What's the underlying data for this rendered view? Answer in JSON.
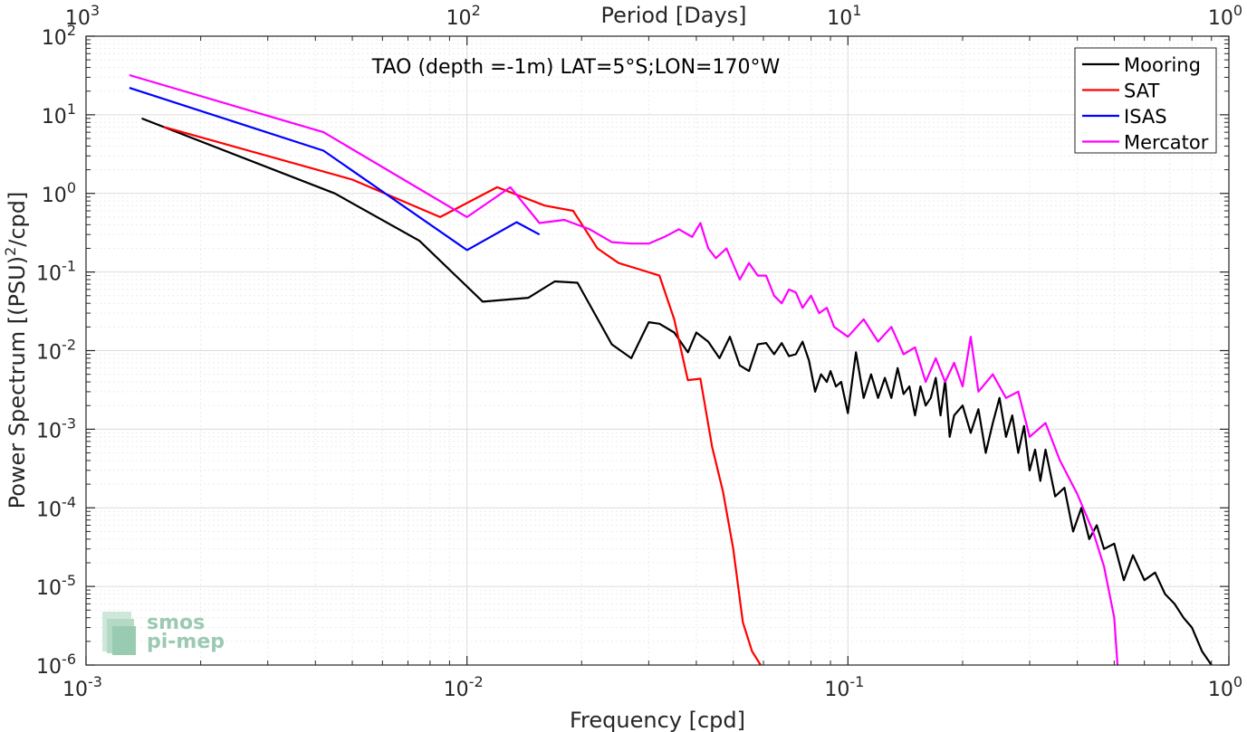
{
  "chart_data": {
    "type": "line",
    "title": "TAO (depth =-1m) LAT=5°S;LON=170°W",
    "xlabel": "Frequency [cpd]",
    "ylabel_main": "Power Spectrum [(PSU)",
    "ylabel_sup": "2",
    "ylabel_tail": "/cpd]",
    "top_xlabel": "Period [Days]",
    "x_scale": "log",
    "y_scale": "log",
    "xlim": [
      0.001,
      1
    ],
    "ylim": [
      1e-06,
      100
    ],
    "grid": true,
    "legend_position": "top-right",
    "x_ticks": [
      {
        "value": 0.001,
        "base": "10",
        "exp": "-3"
      },
      {
        "value": 0.01,
        "base": "10",
        "exp": "-2"
      },
      {
        "value": 0.1,
        "base": "10",
        "exp": "-1"
      },
      {
        "value": 1,
        "base": "10",
        "exp": "0"
      }
    ],
    "top_ticks": [
      {
        "value": 0.001,
        "base": "10",
        "exp": "3"
      },
      {
        "value": 0.01,
        "base": "10",
        "exp": "2"
      },
      {
        "value": 0.1,
        "base": "10",
        "exp": "1"
      },
      {
        "value": 1,
        "base": "10",
        "exp": "0"
      }
    ],
    "y_ticks": [
      {
        "value": 100,
        "base": "10",
        "exp": "2"
      },
      {
        "value": 10,
        "base": "10",
        "exp": "1"
      },
      {
        "value": 1,
        "base": "10",
        "exp": "0"
      },
      {
        "value": 0.1,
        "base": "10",
        "exp": "-1"
      },
      {
        "value": 0.01,
        "base": "10",
        "exp": "-2"
      },
      {
        "value": 0.001,
        "base": "10",
        "exp": "-3"
      },
      {
        "value": 0.0001,
        "base": "10",
        "exp": "-4"
      },
      {
        "value": 1e-05,
        "base": "10",
        "exp": "-5"
      },
      {
        "value": 1e-06,
        "base": "10",
        "exp": "-6"
      }
    ],
    "series": [
      {
        "name": "Mooring",
        "color": "#000000",
        "x": [
          0.0014,
          0.0045,
          0.0075,
          0.011,
          0.0145,
          0.017,
          0.0195,
          0.024,
          0.027,
          0.03,
          0.032,
          0.035,
          0.038,
          0.04,
          0.043,
          0.046,
          0.049,
          0.052,
          0.055,
          0.058,
          0.061,
          0.064,
          0.067,
          0.07,
          0.073,
          0.076,
          0.079,
          0.082,
          0.085,
          0.088,
          0.09,
          0.093,
          0.096,
          0.1,
          0.105,
          0.11,
          0.115,
          0.12,
          0.125,
          0.13,
          0.135,
          0.14,
          0.145,
          0.15,
          0.155,
          0.16,
          0.165,
          0.17,
          0.175,
          0.18,
          0.185,
          0.19,
          0.2,
          0.21,
          0.22,
          0.23,
          0.24,
          0.25,
          0.26,
          0.27,
          0.28,
          0.29,
          0.3,
          0.31,
          0.32,
          0.33,
          0.35,
          0.37,
          0.39,
          0.41,
          0.43,
          0.45,
          0.47,
          0.5,
          0.53,
          0.56,
          0.6,
          0.64,
          0.68,
          0.72,
          0.76,
          0.8,
          0.85,
          0.9
        ],
        "y": [
          9,
          1.0,
          0.25,
          0.042,
          0.047,
          0.076,
          0.073,
          0.012,
          0.008,
          0.023,
          0.022,
          0.017,
          0.0095,
          0.017,
          0.013,
          0.008,
          0.015,
          0.0065,
          0.0055,
          0.012,
          0.0125,
          0.009,
          0.0125,
          0.0085,
          0.009,
          0.013,
          0.0075,
          0.003,
          0.005,
          0.004,
          0.0055,
          0.0035,
          0.004,
          0.0016,
          0.0095,
          0.0025,
          0.005,
          0.0025,
          0.0045,
          0.0025,
          0.006,
          0.0028,
          0.0035,
          0.0015,
          0.0035,
          0.002,
          0.0025,
          0.0045,
          0.0015,
          0.0042,
          0.0008,
          0.0015,
          0.002,
          0.0009,
          0.0018,
          0.0005,
          0.0012,
          0.0025,
          0.0008,
          0.0015,
          0.0005,
          0.0011,
          0.0003,
          0.00055,
          0.00022,
          0.00055,
          0.00014,
          0.00018,
          5e-05,
          0.0001,
          4e-05,
          6e-05,
          3e-05,
          3.5e-05,
          1.2e-05,
          2.5e-05,
          1.2e-05,
          1.5e-05,
          8e-06,
          6e-06,
          4e-06,
          3e-06,
          1.5e-06,
          1e-06
        ]
      },
      {
        "name": "SAT",
        "color": "#ff0000",
        "x": [
          0.0016,
          0.005,
          0.0085,
          0.012,
          0.016,
          0.019,
          0.022,
          0.025,
          0.028,
          0.032,
          0.035,
          0.038,
          0.041,
          0.044,
          0.047,
          0.05,
          0.053,
          0.056,
          0.059
        ],
        "y": [
          7,
          1.5,
          0.5,
          1.2,
          0.7,
          0.6,
          0.2,
          0.13,
          0.11,
          0.09,
          0.025,
          0.0042,
          0.0044,
          0.0006,
          0.00016,
          3e-05,
          3.5e-06,
          1.5e-06,
          1e-06
        ]
      },
      {
        "name": "ISAS",
        "color": "#0000ff",
        "x": [
          0.0013,
          0.0042,
          0.01,
          0.0135,
          0.0155
        ],
        "y": [
          22,
          3.5,
          0.19,
          0.43,
          0.3
        ]
      },
      {
        "name": "Mercator",
        "color": "#ff00ff",
        "x": [
          0.0013,
          0.0042,
          0.01,
          0.013,
          0.0155,
          0.018,
          0.021,
          0.024,
          0.027,
          0.03,
          0.033,
          0.036,
          0.039,
          0.041,
          0.043,
          0.045,
          0.048,
          0.052,
          0.055,
          0.058,
          0.061,
          0.064,
          0.067,
          0.07,
          0.073,
          0.076,
          0.08,
          0.084,
          0.088,
          0.092,
          0.1,
          0.11,
          0.12,
          0.13,
          0.14,
          0.15,
          0.16,
          0.17,
          0.18,
          0.19,
          0.2,
          0.21,
          0.22,
          0.24,
          0.26,
          0.28,
          0.3,
          0.33,
          0.36,
          0.4,
          0.44,
          0.47,
          0.5,
          0.51
        ],
        "y": [
          32,
          6,
          0.5,
          1.2,
          0.42,
          0.46,
          0.35,
          0.24,
          0.23,
          0.23,
          0.28,
          0.35,
          0.28,
          0.42,
          0.2,
          0.15,
          0.2,
          0.08,
          0.13,
          0.09,
          0.09,
          0.05,
          0.04,
          0.06,
          0.055,
          0.035,
          0.05,
          0.03,
          0.035,
          0.02,
          0.015,
          0.025,
          0.013,
          0.02,
          0.009,
          0.011,
          0.004,
          0.008,
          0.004,
          0.007,
          0.0035,
          0.015,
          0.003,
          0.005,
          0.0025,
          0.003,
          0.0008,
          0.0012,
          0.0004,
          0.00015,
          5e-05,
          1.8e-05,
          4e-06,
          1e-06
        ]
      }
    ]
  },
  "logo": {
    "line1": "smos",
    "line2": "pi-mep"
  }
}
